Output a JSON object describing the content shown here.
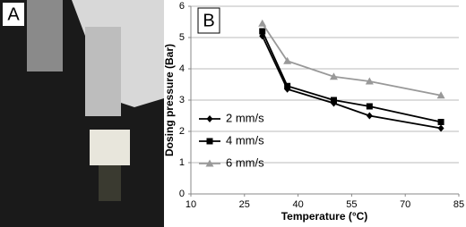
{
  "photo": {
    "label": "A"
  },
  "chart_data": {
    "type": "line",
    "panel_label": "B",
    "x_label": "Temperature (°C)",
    "y_label": "Dosing pressure (Bar)",
    "x": [
      30,
      37,
      50,
      60,
      80
    ],
    "series": [
      {
        "name": "2 mm/s",
        "color": "#000000",
        "marker": "diamond",
        "values": [
          5.05,
          3.35,
          2.9,
          2.5,
          2.1
        ]
      },
      {
        "name": "4 mm/s",
        "color": "#000000",
        "marker": "square",
        "values": [
          5.2,
          3.45,
          3.0,
          2.8,
          2.3
        ]
      },
      {
        "name": "6 mm/s",
        "color": "#999999",
        "marker": "triangle",
        "values": [
          5.45,
          4.25,
          3.75,
          3.6,
          3.15
        ]
      }
    ],
    "xlim": [
      10,
      85
    ],
    "xticks": [
      10,
      25,
      40,
      55,
      70,
      85
    ],
    "ylim": [
      0,
      6
    ],
    "yticks": [
      0,
      1,
      2,
      3,
      4,
      5,
      6
    ],
    "grid": true
  }
}
